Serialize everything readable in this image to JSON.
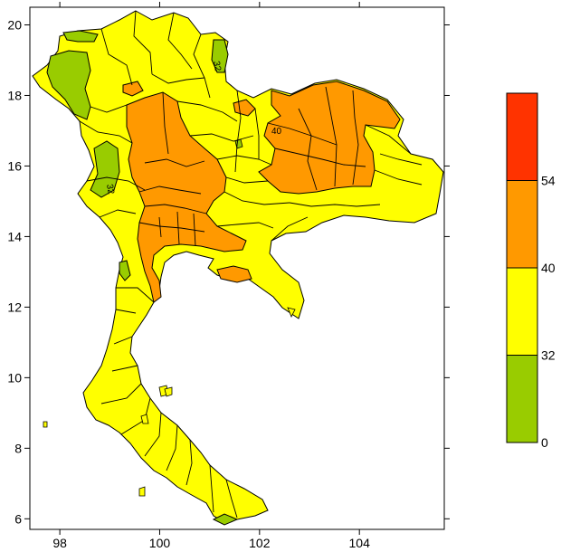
{
  "map": {
    "x_ticks": [
      "98",
      "100",
      "102",
      "104"
    ],
    "y_ticks": [
      "20",
      "18",
      "16",
      "14",
      "12",
      "10",
      "8",
      "6"
    ],
    "lon_range": [
      97.4,
      105.7
    ],
    "lat_range": [
      5.7,
      20.5
    ],
    "contour_labels": [
      "32",
      "40",
      "32"
    ]
  },
  "legend": {
    "classes": [
      {
        "range": [
          0,
          32
        ],
        "color": "#99cc00"
      },
      {
        "range": [
          32,
          40
        ],
        "color": "#ffff00"
      },
      {
        "range": [
          40,
          54
        ],
        "color": "#ff9900"
      },
      {
        "range": [
          54,
          60
        ],
        "color": "#ff3300"
      }
    ],
    "labels": [
      "0",
      "32",
      "40",
      "54"
    ]
  },
  "colors": {
    "green": "#99cc00",
    "yellow": "#ffff00",
    "orange": "#ff9900",
    "red": "#ff3300"
  }
}
